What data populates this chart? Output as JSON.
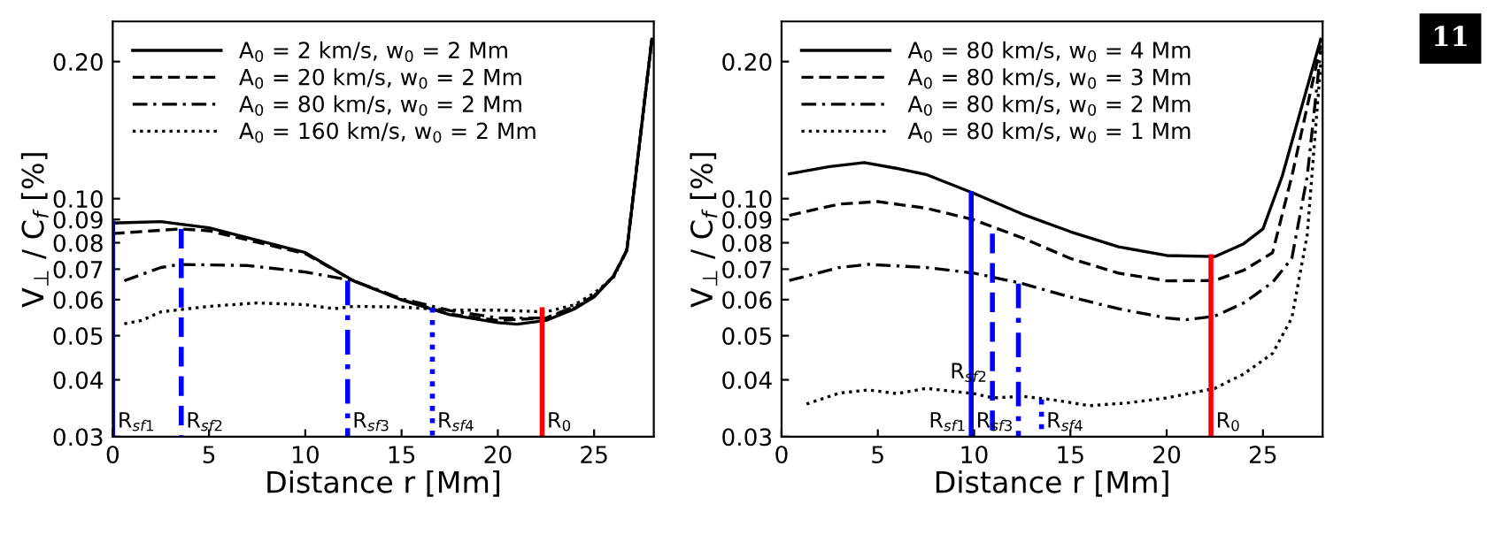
{
  "chart_data": [
    {
      "type": "line",
      "xlabel": "Distance r [Mm]",
      "ylabel": "V$_{⊥}$ / C$_{f}$ [%]",
      "log": "y",
      "xlim": [
        0,
        28.1
      ],
      "ylim": [
        0.03,
        0.245
      ],
      "xticks": [
        0,
        5,
        10,
        15,
        20,
        25
      ],
      "yticks": [
        {
          "value": 0.03,
          "label": "0.03"
        },
        {
          "value": 0.04,
          "label": "0.04"
        },
        {
          "value": 0.05,
          "label": "0.05"
        },
        {
          "value": 0.06,
          "label": "0.06"
        },
        {
          "value": 0.07,
          "label": "0.07"
        },
        {
          "value": 0.08,
          "label": "0.08"
        },
        {
          "value": 0.09,
          "label": "0.09"
        },
        {
          "value": 0.1,
          "label": "0.10"
        },
        {
          "value": 0.2,
          "label": "0.20"
        }
      ],
      "legend": "top left",
      "grid": false,
      "series": [
        {
          "name": "A$_{0}$ = 2 km/s, w$_{0}$ = 2 Mm",
          "color": "#000000",
          "line_style": "solid",
          "x": [
            0,
            2.5,
            5,
            10,
            12.5,
            15,
            17.5,
            20,
            21,
            22.5,
            24,
            25,
            26,
            26.7,
            28
          ],
          "values": [
            0.0884,
            0.089,
            0.0863,
            0.0761,
            0.066,
            0.0599,
            0.0556,
            0.0534,
            0.053,
            0.054,
            0.0573,
            0.0608,
            0.0675,
            0.077,
            0.224
          ]
        },
        {
          "name": "A$_{0}$ = 20 km/s, w$_{0}$ = 2 Mm",
          "color": "#000000",
          "line_style": "dashed",
          "x": [
            0,
            3.5,
            5,
            10,
            12.5,
            15,
            17.5,
            20,
            22.5,
            24,
            25,
            26,
            26.7,
            28
          ],
          "values": [
            0.0838,
            0.0858,
            0.085,
            0.0757,
            0.066,
            0.06,
            0.0558,
            0.054,
            0.0547,
            0.0575,
            0.061,
            0.0675,
            0.077,
            0.224
          ]
        },
        {
          "name": "A$_{0}$ = 80 km/s, w$_{0}$ = 2 Mm",
          "color": "#000000",
          "line_style": "dashdot",
          "x": [
            0.6,
            2.5,
            3.5,
            7,
            10,
            12.5,
            15,
            17.5,
            20,
            22.5,
            24,
            25,
            26,
            26.7,
            28
          ],
          "values": [
            0.066,
            0.0706,
            0.0717,
            0.0713,
            0.069,
            0.066,
            0.0603,
            0.0568,
            0.0547,
            0.0547,
            0.058,
            0.0612,
            0.0675,
            0.077,
            0.224
          ]
        },
        {
          "name": "A$_{0}$ = 160 km/s, w$_{0}$ = 2 Mm",
          "color": "#000000",
          "line_style": "dotted",
          "x": [
            0.6,
            1.5,
            2.5,
            5,
            7.5,
            10,
            11.5,
            12.5,
            15,
            17.5,
            20,
            22.5,
            24,
            25,
            26,
            26.7,
            28
          ],
          "values": [
            0.0531,
            0.054,
            0.0564,
            0.058,
            0.059,
            0.0585,
            0.0573,
            0.058,
            0.0578,
            0.0569,
            0.0569,
            0.0564,
            0.0585,
            0.062,
            0.067,
            0.077,
            0.224
          ]
        },
        {
          "color": "#0000ff",
          "line_style": "solid",
          "x": [
            0,
            0
          ],
          "values": [
            0.0884,
            0.03
          ]
        },
        {
          "color": "#0000ff",
          "line_style": "dashed",
          "x": [
            3.56,
            3.56
          ],
          "values": [
            0.0858,
            0.03
          ]
        },
        {
          "color": "#0000ff",
          "line_style": "dashdot",
          "x": [
            12.2,
            12.2
          ],
          "values": [
            0.066,
            0.03
          ]
        },
        {
          "color": "#0000ff",
          "line_style": "dotted",
          "x": [
            16.6,
            16.6
          ],
          "values": [
            0.0576,
            0.03
          ]
        },
        {
          "color": "#ff0000",
          "line_style": "solid",
          "x": [
            22.3,
            22.3
          ],
          "values": [
            0.057,
            0.03
          ]
        }
      ],
      "annotations": [
        {
          "text": "R$_{sf1}$",
          "x": 0,
          "y": 0.03
        },
        {
          "text": "R$_{sf2}$",
          "x": 3.56,
          "y": 0.03
        },
        {
          "text": "R$_{sf3}$",
          "x": 12.2,
          "y": 0.03
        },
        {
          "text": "R$_{sf4}$",
          "x": 16.6,
          "y": 0.03
        },
        {
          "text": "R$_{0}$",
          "x": 22.3,
          "y": 0.03
        }
      ]
    },
    {
      "type": "line",
      "xlabel": "Distance r [Mm]",
      "ylabel": "V$_{⊥}$ / C$_{f}$ [%]",
      "log": "y",
      "xlim": [
        0,
        28.1
      ],
      "ylim": [
        0.03,
        0.245
      ],
      "xticks": [
        0,
        5,
        10,
        15,
        20,
        25
      ],
      "yticks": [
        {
          "value": 0.03,
          "label": "0.03"
        },
        {
          "value": 0.04,
          "label": "0.04"
        },
        {
          "value": 0.05,
          "label": "0.05"
        },
        {
          "value": 0.06,
          "label": "0.06"
        },
        {
          "value": 0.07,
          "label": "0.07"
        },
        {
          "value": 0.08,
          "label": "0.08"
        },
        {
          "value": 0.09,
          "label": "0.09"
        },
        {
          "value": 0.1,
          "label": "0.10"
        },
        {
          "value": 0.2,
          "label": "0.20"
        }
      ],
      "legend": "top left",
      "grid": false,
      "series": [
        {
          "name": "A$_{0}$ = 80 km/s, w$_{0}$ = 4 Mm",
          "color": "#000000",
          "line_style": "solid",
          "x": [
            0.4,
            2.5,
            4.3,
            6,
            7.5,
            10,
            12.5,
            15,
            17.5,
            20,
            22.5,
            24,
            25,
            26,
            28
          ],
          "values": [
            0.1134,
            0.1176,
            0.12,
            0.1165,
            0.113,
            0.1027,
            0.0925,
            0.0846,
            0.0784,
            0.075,
            0.0746,
            0.0796,
            0.0858,
            0.112,
            0.224
          ]
        },
        {
          "name": "A$_{0}$ = 80 km/s, w$_{0}$ = 3 Mm",
          "color": "#000000",
          "line_style": "dashed",
          "x": [
            0.4,
            3,
            5,
            7.5,
            10,
            12.5,
            15,
            17.5,
            20,
            22.5,
            24,
            25.5,
            26.5,
            28
          ],
          "values": [
            0.0919,
            0.0973,
            0.0985,
            0.0953,
            0.0898,
            0.082,
            0.0739,
            0.0686,
            0.066,
            0.0661,
            0.0696,
            0.0761,
            0.112,
            0.217
          ]
        },
        {
          "name": "A$_{0}$ = 80 km/s, w$_{0}$ = 2 Mm",
          "color": "#000000",
          "line_style": "dashdot",
          "x": [
            0.4,
            3,
            4.5,
            7.5,
            10,
            12.5,
            15,
            17.5,
            20,
            21,
            22.5,
            24,
            25.5,
            26.5,
            27.3,
            28
          ],
          "values": [
            0.0661,
            0.0706,
            0.0717,
            0.0706,
            0.0686,
            0.0651,
            0.0608,
            0.0573,
            0.0547,
            0.0542,
            0.0552,
            0.059,
            0.0655,
            0.0739,
            0.112,
            0.211
          ]
        },
        {
          "name": "A$_{0}$ = 80 km/s, w$_{0}$ = 1 Mm",
          "color": "#000000",
          "line_style": "dotted",
          "x": [
            1.3,
            3,
            4.5,
            6,
            7.5,
            10,
            11,
            12.5,
            14,
            16,
            18,
            20,
            22.5,
            24,
            25.5,
            26.5,
            27.3,
            28
          ],
          "values": [
            0.0354,
            0.0374,
            0.038,
            0.0373,
            0.0383,
            0.0373,
            0.0365,
            0.0368,
            0.0362,
            0.0351,
            0.0356,
            0.0365,
            0.0383,
            0.0412,
            0.0457,
            0.0547,
            0.0833,
            0.198
          ]
        },
        {
          "color": "#0000ff",
          "line_style": "solid",
          "x": [
            9.85,
            9.85
          ],
          "values": [
            0.1027,
            0.03
          ]
        },
        {
          "color": "#0000ff",
          "line_style": "dashed",
          "x": [
            10.95,
            10.95
          ],
          "values": [
            0.0838,
            0.03
          ]
        },
        {
          "color": "#0000ff",
          "line_style": "dashdot",
          "x": [
            12.3,
            12.3
          ],
          "values": [
            0.0651,
            0.03
          ]
        },
        {
          "color": "#0000ff",
          "line_style": "dotted",
          "x": [
            13.5,
            13.5
          ],
          "values": [
            0.0362,
            0.03
          ]
        },
        {
          "color": "#ff0000",
          "line_style": "solid",
          "x": [
            22.3,
            22.3
          ],
          "values": [
            0.0746,
            0.03
          ]
        }
      ],
      "annotations": [
        {
          "text": "R$_{sf1}$",
          "x": 9.85,
          "y": 0.03
        },
        {
          "text": "R$_{sf2}$",
          "x": 10.95,
          "y": 0.03
        },
        {
          "text": "R$_{sf3}$",
          "x": 12.3,
          "y": 0.03
        },
        {
          "text": "R$_{sf4}$",
          "x": 13.5,
          "y": 0.03
        },
        {
          "text": "R$_{0}$",
          "x": 22.3,
          "y": 0.03
        },
        "11"
      ]
    }
  ]
}
